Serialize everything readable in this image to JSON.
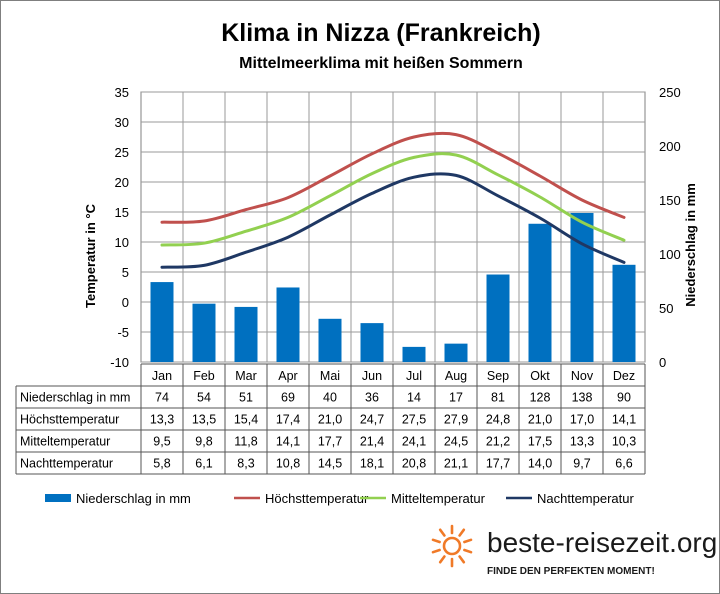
{
  "chart_data": {
    "type": "bar+line",
    "title": "Klima in Nizza (Frankreich)",
    "subtitle": "Mittelmeerklima mit heißen Sommern",
    "ylabel_left": "Temperatur in °C",
    "ylabel_right": "Niederschlag in mm",
    "ylim_left": [
      -10,
      35
    ],
    "yticks_left": [
      35,
      30,
      25,
      20,
      15,
      10,
      5,
      0,
      -5,
      -10
    ],
    "ylim_right": [
      0,
      250
    ],
    "yticks_right": [
      250,
      200,
      150,
      100,
      50,
      0
    ],
    "grid": true,
    "legend_position": "bottom",
    "categories": [
      "Jan",
      "Feb",
      "Mar",
      "Apr",
      "Mai",
      "Jun",
      "Jul",
      "Aug",
      "Sep",
      "Okt",
      "Nov",
      "Dez"
    ],
    "series": [
      {
        "name": "Niederschlag in mm",
        "type": "bar",
        "axis": "right",
        "color": "#0070c0",
        "values": [
          74,
          54,
          51,
          69,
          40,
          36,
          14,
          17,
          81,
          128,
          138,
          90
        ],
        "labels": [
          "74",
          "54",
          "51",
          "69",
          "40",
          "36",
          "14",
          "17",
          "81",
          "128",
          "138",
          "90"
        ]
      },
      {
        "name": "Höchsttemperatur",
        "type": "line",
        "axis": "left",
        "color": "#c0504d",
        "values": [
          13.3,
          13.5,
          15.4,
          17.4,
          21.0,
          24.7,
          27.5,
          27.9,
          24.8,
          21.0,
          17.0,
          14.1
        ],
        "labels": [
          "13,3",
          "13,5",
          "15,4",
          "17,4",
          "21,0",
          "24,7",
          "27,5",
          "27,9",
          "24,8",
          "21,0",
          "17,0",
          "14,1"
        ]
      },
      {
        "name": "Mitteltemperatur",
        "type": "line",
        "axis": "left",
        "color": "#92d050",
        "values": [
          9.5,
          9.8,
          11.8,
          14.1,
          17.7,
          21.4,
          24.1,
          24.5,
          21.2,
          17.5,
          13.3,
          10.3
        ],
        "labels": [
          "9,5",
          "9,8",
          "11,8",
          "14,1",
          "17,7",
          "21,4",
          "24,1",
          "24,5",
          "21,2",
          "17,5",
          "13,3",
          "10,3"
        ]
      },
      {
        "name": "Nachttemperatur",
        "type": "line",
        "axis": "left",
        "color": "#1f3864",
        "values": [
          5.8,
          6.1,
          8.3,
          10.8,
          14.5,
          18.1,
          20.8,
          21.1,
          17.7,
          14.0,
          9.7,
          6.6
        ],
        "labels": [
          "5,8",
          "6,1",
          "8,3",
          "10,8",
          "14,5",
          "18,1",
          "20,8",
          "21,1",
          "17,7",
          "14,0",
          "9,7",
          "6,6"
        ]
      }
    ]
  },
  "branding": {
    "site": "beste-reisezeit.org",
    "tagline": "FINDE DEN PERFEKTEN MOMENT!",
    "sun_icon": "sun-icon",
    "sun_color": "#f07a28"
  }
}
